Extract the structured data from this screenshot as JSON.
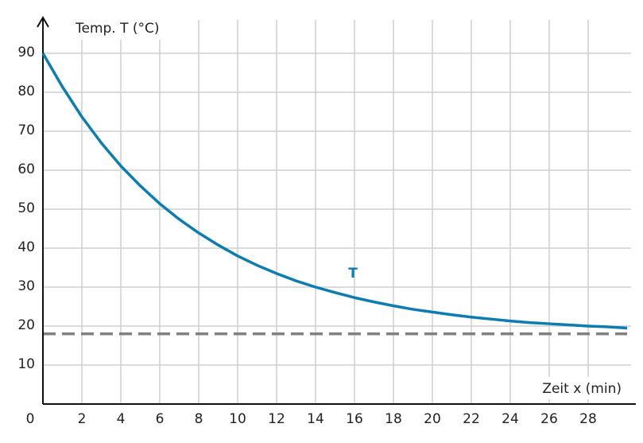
{
  "chart_data": {
    "type": "line",
    "x_label": "Zeit x (min)",
    "y_label": "Temp. T (°C)",
    "x": [
      0,
      1,
      2,
      3,
      4,
      5,
      6,
      7,
      8,
      9,
      10,
      11,
      12,
      13,
      14,
      15,
      16,
      17,
      18,
      19,
      20,
      21,
      22,
      23,
      24,
      25,
      26,
      27,
      28,
      29,
      30
    ],
    "series": [
      {
        "name": "T",
        "color": "#0b7db3",
        "values": [
          90,
          81.4,
          73.7,
          67.0,
          61.1,
          56.0,
          51.4,
          47.4,
          43.9,
          40.8,
          38.0,
          35.6,
          33.5,
          31.6,
          30.0,
          28.6,
          27.3,
          26.2,
          25.2,
          24.3,
          23.6,
          22.9,
          22.3,
          21.8,
          21.3,
          20.9,
          20.6,
          20.3,
          20.0,
          19.8,
          19.5
        ]
      }
    ],
    "asymptote": 18,
    "asymptote_color": "#808080",
    "xlim": [
      0,
      30
    ],
    "ylim": [
      0,
      100
    ],
    "xticks": [
      0,
      2,
      4,
      6,
      8,
      10,
      12,
      14,
      16,
      18,
      20,
      22,
      24,
      26,
      28
    ],
    "yticks": [
      10,
      20,
      30,
      40,
      50,
      60,
      70,
      80,
      90
    ],
    "grid": true
  }
}
